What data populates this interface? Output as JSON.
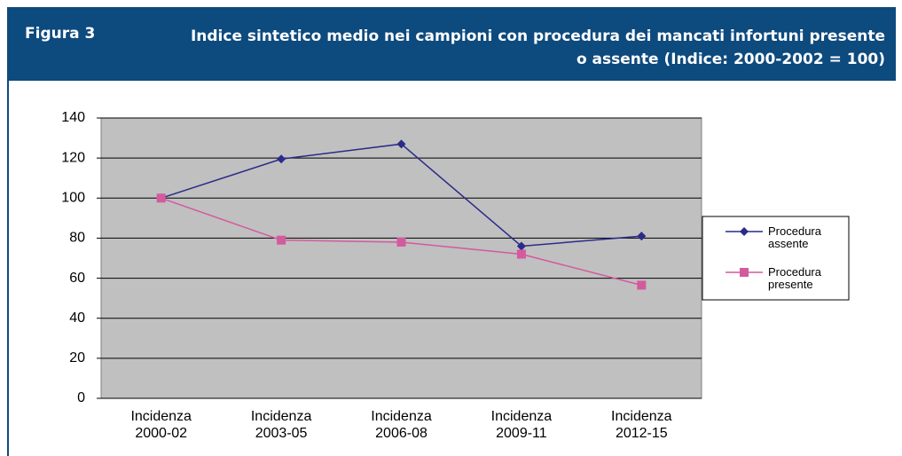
{
  "header": {
    "label": "Figura 3"
  },
  "chart_data": {
    "type": "line",
    "title": "Indice sintetico medio nei campioni con procedura dei mancati infortuni presente o assente (Indice: 2000-2002 = 100)",
    "categories": [
      "Incidenza 2000-02",
      "Incidenza 2003-05",
      "Incidenza 2006-08",
      "Incidenza 2009-11",
      "Incidenza 2012-15"
    ],
    "series": [
      {
        "name": "Procedura assente",
        "color": "#2b2b8a",
        "marker": "diamond",
        "values": [
          100,
          119.5,
          127,
          76,
          81
        ]
      },
      {
        "name": "Procedura presente",
        "color": "#d45a9e",
        "marker": "square",
        "values": [
          100,
          79,
          78,
          72,
          56.5
        ]
      }
    ],
    "ylim": [
      0,
      140
    ],
    "yticks": [
      0,
      20,
      40,
      60,
      80,
      100,
      120,
      140
    ],
    "grid": true,
    "legend": "right"
  }
}
